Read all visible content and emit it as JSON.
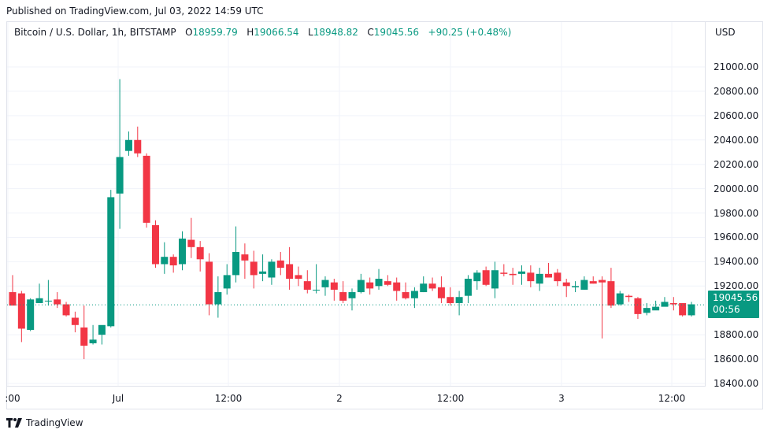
{
  "header": {
    "published": "Published on TradingView.com, Jul 03, 2022 14:59 UTC"
  },
  "legend": {
    "symbol": "Bitcoin / U.S. Dollar, 1h, BITSTAMP",
    "o_label": "O",
    "o_value": "18959.79",
    "h_label": "H",
    "h_value": "19066.54",
    "l_label": "L",
    "l_value": "18948.82",
    "c_label": "C",
    "c_value": "19045.56",
    "change": "+90.25 (+0.48%)"
  },
  "price_axis": {
    "currency": "USD",
    "labels": [
      "21000.00",
      "20800.00",
      "20600.00",
      "20400.00",
      "20200.00",
      "20000.00",
      "19800.00",
      "19600.00",
      "19400.00",
      "19200.00",
      "18800.00",
      "18600.00",
      "18400.00"
    ],
    "last_price": "19045.56",
    "countdown": "00:56"
  },
  "time_axis": {
    "labels": [
      ":00",
      "Jul",
      "12:00",
      "2",
      "12:00",
      "3",
      "12:00"
    ]
  },
  "footer": {
    "brand": "TradingView"
  },
  "colors": {
    "up": "#089981",
    "down": "#f23645",
    "grid": "#f0f3fa",
    "last_line": "#089981"
  },
  "chart_data": {
    "type": "candlestick",
    "title": "Bitcoin / U.S. Dollar, 1h, BITSTAMP",
    "xlabel": "",
    "ylabel": "USD",
    "ylim": [
      18300,
      21100
    ],
    "y_ticks": [
      18400,
      18600,
      18800,
      19200,
      19400,
      19600,
      19800,
      20000,
      20200,
      20400,
      20600,
      20800,
      21000
    ],
    "x_tick_labels": [
      ":00",
      "Jul",
      "12:00",
      "2",
      "12:00",
      "3",
      "12:00"
    ],
    "grid": true,
    "last_price": 19045.56,
    "candles": [
      [
        19150,
        19040,
        19290,
        19040
      ],
      [
        19140,
        18850,
        19160,
        18740
      ],
      [
        18840,
        19090,
        19100,
        18830
      ],
      [
        19060,
        19100,
        19220,
        19060
      ],
      [
        19080,
        19080,
        19250,
        19040
      ],
      [
        19090,
        19050,
        19150,
        19020
      ],
      [
        19050,
        18960,
        19070,
        18950
      ],
      [
        18940,
        18880,
        18990,
        18820
      ],
      [
        18860,
        18710,
        19040,
        18600
      ],
      [
        18730,
        18760,
        18880,
        18720
      ],
      [
        18800,
        18880,
        18870,
        18720
      ],
      [
        18870,
        19930,
        19990,
        18860
      ],
      [
        19960,
        20260,
        20900,
        19670
      ],
      [
        20310,
        20400,
        20470,
        20270
      ],
      [
        20400,
        20290,
        20510,
        20260
      ],
      [
        20270,
        19720,
        20290,
        19680
      ],
      [
        19700,
        19380,
        19740,
        19350
      ],
      [
        19380,
        19440,
        19560,
        19300
      ],
      [
        19440,
        19370,
        19460,
        19310
      ],
      [
        19380,
        19590,
        19650,
        19330
      ],
      [
        19580,
        19520,
        19760,
        19430
      ],
      [
        19520,
        19420,
        19570,
        19320
      ],
      [
        19400,
        19050,
        19470,
        18960
      ],
      [
        19050,
        19150,
        19280,
        18940
      ],
      [
        19180,
        19290,
        19380,
        19130
      ],
      [
        19290,
        19480,
        19690,
        19230
      ],
      [
        19460,
        19410,
        19550,
        19260
      ],
      [
        19400,
        19290,
        19490,
        19180
      ],
      [
        19300,
        19320,
        19460,
        19240
      ],
      [
        19270,
        19400,
        19420,
        19210
      ],
      [
        19410,
        19350,
        19480,
        19290
      ],
      [
        19380,
        19260,
        19520,
        19170
      ],
      [
        19290,
        19260,
        19360,
        19200
      ],
      [
        19240,
        19170,
        19330,
        19140
      ],
      [
        19170,
        19170,
        19380,
        19140
      ],
      [
        19190,
        19250,
        19280,
        19120
      ],
      [
        19230,
        19170,
        19260,
        19080
      ],
      [
        19150,
        19080,
        19240,
        19060
      ],
      [
        19100,
        19150,
        19180,
        19000
      ],
      [
        19150,
        19250,
        19300,
        19140
      ],
      [
        19230,
        19180,
        19270,
        19130
      ],
      [
        19200,
        19260,
        19340,
        19170
      ],
      [
        19240,
        19210,
        19290,
        19200
      ],
      [
        19230,
        19160,
        19270,
        19080
      ],
      [
        19150,
        19100,
        19230,
        19090
      ],
      [
        19100,
        19160,
        19190,
        19020
      ],
      [
        19150,
        19220,
        19280,
        19150
      ],
      [
        19220,
        19180,
        19270,
        19160
      ],
      [
        19190,
        19100,
        19280,
        19060
      ],
      [
        19110,
        19060,
        19190,
        19040
      ],
      [
        19060,
        19110,
        19160,
        18960
      ],
      [
        19120,
        19260,
        19290,
        19060
      ],
      [
        19240,
        19310,
        19330,
        19170
      ],
      [
        19330,
        19210,
        19360,
        19200
      ],
      [
        19180,
        19330,
        19400,
        19100
      ],
      [
        19310,
        19300,
        19380,
        19280
      ],
      [
        19300,
        19290,
        19350,
        19210
      ],
      [
        19300,
        19320,
        19370,
        19210
      ],
      [
        19310,
        19240,
        19370,
        19190
      ],
      [
        19220,
        19300,
        19350,
        19160
      ],
      [
        19300,
        19270,
        19390,
        19290
      ],
      [
        19310,
        19240,
        19340,
        19200
      ],
      [
        19230,
        19200,
        19260,
        19110
      ],
      [
        19190,
        19200,
        19240,
        19150
      ],
      [
        19170,
        19250,
        19280,
        19170
      ],
      [
        19240,
        19220,
        19280,
        19220
      ],
      [
        19250,
        19230,
        19280,
        18770
      ],
      [
        19240,
        19040,
        19350,
        19020
      ],
      [
        19050,
        19140,
        19160,
        19040
      ],
      [
        19120,
        19110,
        19130,
        19070
      ],
      [
        19100,
        18970,
        19110,
        18930
      ],
      [
        18980,
        19020,
        19060,
        18960
      ],
      [
        19000,
        19030,
        19080,
        19010
      ],
      [
        19030,
        19070,
        19110,
        19040
      ],
      [
        19060,
        19050,
        19110,
        19000
      ],
      [
        19060,
        18960,
        19060,
        18950
      ],
      [
        18960,
        19050,
        19070,
        18950
      ]
    ]
  }
}
